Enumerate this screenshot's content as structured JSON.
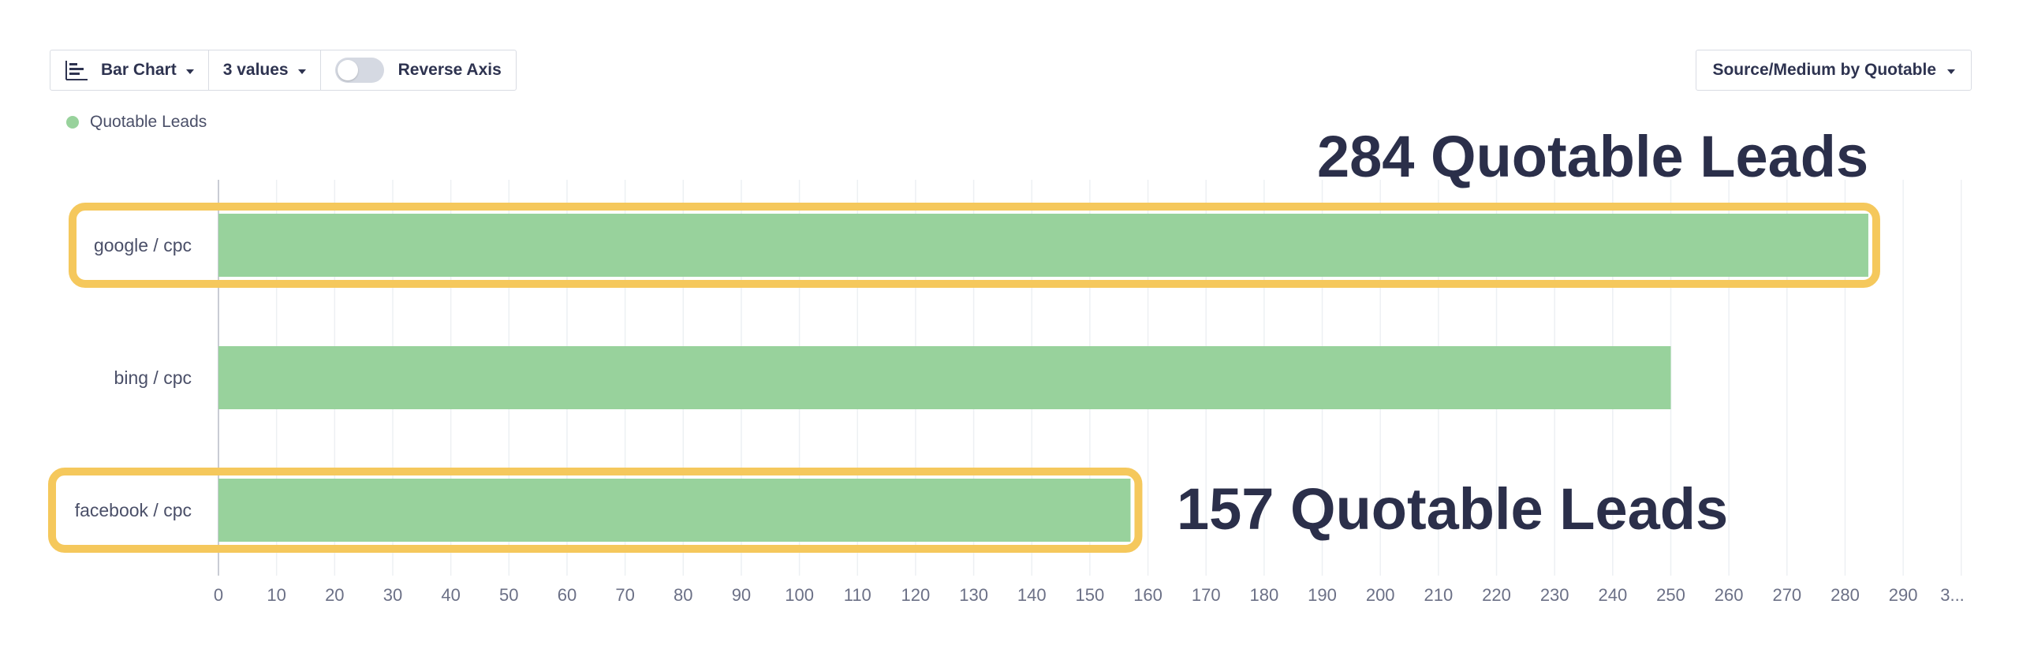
{
  "toolbar": {
    "chart_type_label": "Bar Chart",
    "values_label": "3 values",
    "reverse_axis_label": "Reverse Axis",
    "reverse_axis_on": false
  },
  "group_by_label": "Source/Medium by Quotable",
  "annotations": {
    "top": "284 Quotable Leads",
    "bottom": "157 Quotable Leads",
    "highlight_color": "#f5c85c"
  },
  "chart_data": {
    "type": "bar",
    "orientation": "horizontal",
    "categories": [
      "google / cpc",
      "bing / cpc",
      "facebook / cpc"
    ],
    "series": [
      {
        "name": "Quotable Leads",
        "color": "#98d29c",
        "values": [
          284,
          250,
          157
        ]
      }
    ],
    "xlim": [
      0,
      300
    ],
    "x_ticks": [
      0,
      10,
      20,
      30,
      40,
      50,
      60,
      70,
      80,
      90,
      100,
      110,
      120,
      130,
      140,
      150,
      160,
      170,
      180,
      190,
      200,
      210,
      220,
      230,
      240,
      250,
      260,
      270,
      280,
      290
    ],
    "last_tick_label": "3...",
    "grid": true,
    "legend_position": "top-left",
    "highlighted_categories": [
      "google / cpc",
      "facebook / cpc"
    ]
  }
}
